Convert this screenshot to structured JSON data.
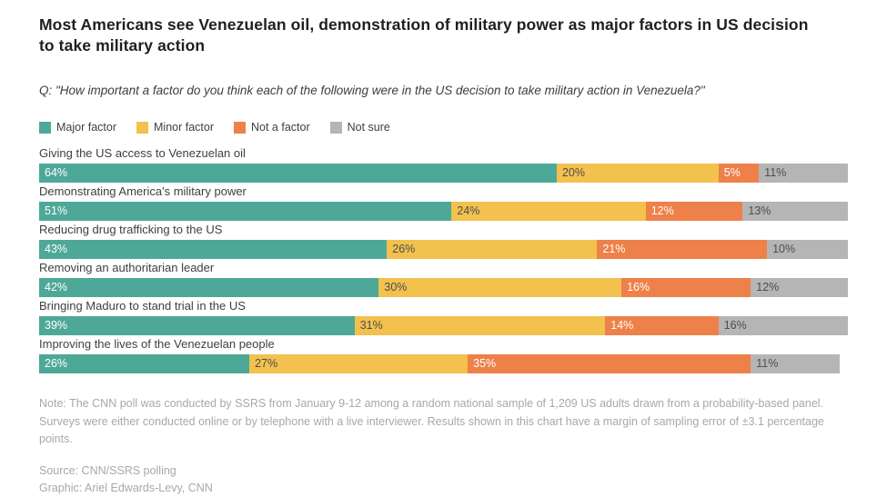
{
  "title": "Most Americans see Venezuelan oil, demonstration of military power as major factors in US decision to take military action",
  "question": "Q: \"How important a factor do you think each of the following were in the US decision to take military action in Venezuela?\"",
  "legend": [
    {
      "label": "Major factor",
      "color": "#4ea898",
      "text_color": "#ffffff"
    },
    {
      "label": "Minor factor",
      "color": "#f2c14e",
      "text_color": "#4d4d4d"
    },
    {
      "label": "Not a factor",
      "color": "#ee8049",
      "text_color": "#ffffff"
    },
    {
      "label": "Not sure",
      "color": "#b5b5b5",
      "text_color": "#4d4d4d"
    }
  ],
  "chart_data": {
    "type": "bar",
    "orientation": "horizontal",
    "stacked": true,
    "value_suffix": "%",
    "xlim": [
      0,
      100
    ],
    "grid": false,
    "legend_position": "top",
    "categories": [
      "Giving the US access to Venezuelan oil",
      "Demonstrating America's military power",
      "Reducing drug trafficking to the US",
      "Removing an authoritarian leader",
      "Bringing Maduro to stand trial in the US",
      "Improving the lives of the Venezuelan people"
    ],
    "series": [
      {
        "name": "Major factor",
        "color": "#4ea898",
        "text_color": "#ffffff",
        "values": [
          64,
          51,
          43,
          42,
          39,
          26
        ]
      },
      {
        "name": "Minor factor",
        "color": "#f2c14e",
        "text_color": "#4d4d4d",
        "values": [
          20,
          24,
          26,
          30,
          31,
          27
        ]
      },
      {
        "name": "Not a factor",
        "color": "#ee8049",
        "text_color": "#ffffff",
        "values": [
          5,
          12,
          21,
          16,
          14,
          35
        ]
      },
      {
        "name": "Not sure",
        "color": "#b5b5b5",
        "text_color": "#4d4d4d",
        "values": [
          11,
          13,
          10,
          12,
          16,
          11
        ]
      }
    ]
  },
  "note": "Note: The CNN poll was conducted by SSRS from January 9-12 among a random national sample of 1,209 US adults drawn from a probability-based panel. Surveys were either conducted online or by telephone with a live interviewer. Results shown in this chart have a margin of sampling error of ±3.1 percentage points.",
  "source": "Source: CNN/SSRS polling",
  "credit": "Graphic: Ariel Edwards-Levy, CNN"
}
